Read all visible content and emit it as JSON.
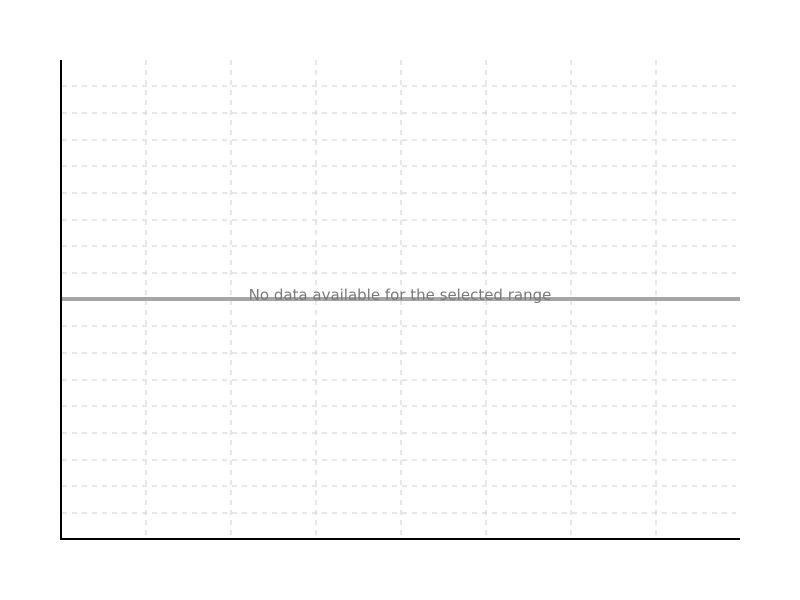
{
  "chart_data": {
    "type": "line",
    "title": "",
    "xlabel": "",
    "ylabel": "",
    "x": [],
    "series": [],
    "grid": true,
    "message": "No data available for the selected range"
  },
  "colors": {
    "axis": "#000000",
    "grid": "#cfcfcf",
    "baseline": "#a6a6a6",
    "message": "#7a7a7a"
  }
}
